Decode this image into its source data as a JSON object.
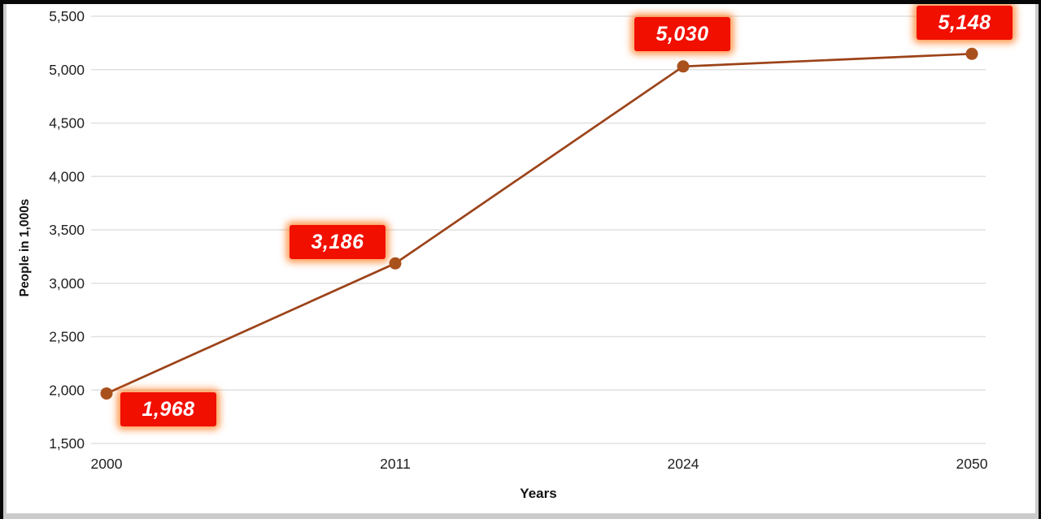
{
  "chart_data": {
    "type": "line",
    "title": "",
    "xlabel": "Years",
    "ylabel": "People in 1,000s",
    "categories": [
      "2000",
      "2011",
      "2024",
      "2050"
    ],
    "values": [
      1968,
      3186,
      5030,
      5148
    ],
    "point_labels": [
      "1,968",
      "3,186",
      "5,030",
      "5,148"
    ],
    "y_ticks": [
      {
        "value": 5500,
        "label": "5,500"
      },
      {
        "value": 5000,
        "label": "5,000"
      },
      {
        "value": 4500,
        "label": "4,500"
      },
      {
        "value": 4000,
        "label": "4,000"
      },
      {
        "value": 3500,
        "label": "3,500"
      },
      {
        "value": 3000,
        "label": "3,000"
      },
      {
        "value": 2500,
        "label": "2,500"
      },
      {
        "value": 2000,
        "label": "2,000"
      },
      {
        "value": 1500,
        "label": "1,500"
      }
    ],
    "ylim": [
      1500,
      5500
    ],
    "grid": true,
    "legend": "none",
    "colors": {
      "line": "#9c4319",
      "marker": "#a8511d",
      "label_bg": "#f10f00",
      "label_text": "#ffffff",
      "label_glow": "#ff7a1e",
      "gridline": "#e0e0e0",
      "axis_text": "#212121",
      "frame": "#070707",
      "window_trim": "#cbcbcb",
      "plot_background": "#ffffff"
    }
  }
}
